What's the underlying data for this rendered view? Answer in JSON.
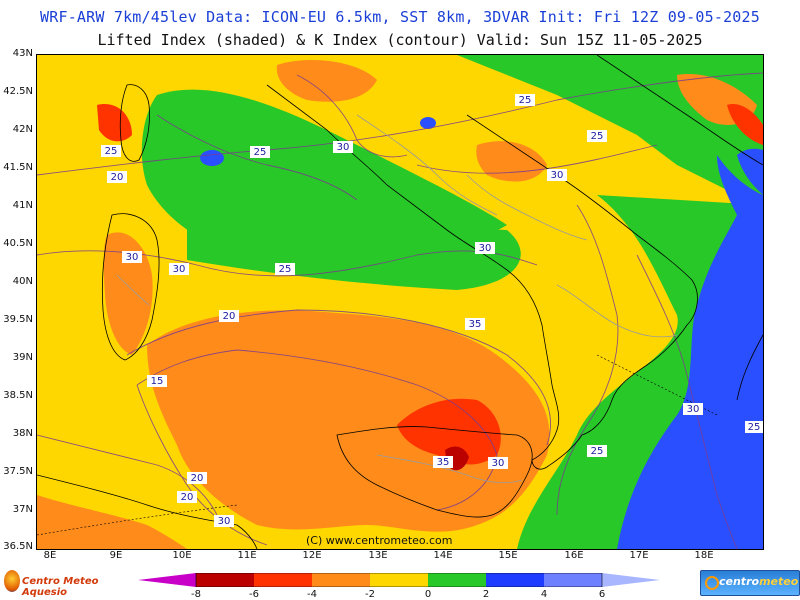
{
  "header": {
    "title_line1": "WRF-ARW 7km/45lev  Data: ICON-EU 6.5km, SST 8km, 3DVAR  Init: Fri 12Z 09-05-2025",
    "title_line2": "Lifted Index (shaded) & K Index (contour)  Valid: Sun 15Z 11-05-2025"
  },
  "map": {
    "lat_labels": [
      "43N",
      "42.5N",
      "42N",
      "41.5N",
      "41N",
      "40.5N",
      "40N",
      "39.5N",
      "39N",
      "38.5N",
      "38N",
      "37.5N",
      "37N",
      "36.5N"
    ],
    "lon_labels": [
      "8E",
      "9E",
      "10E",
      "11E",
      "12E",
      "13E",
      "14E",
      "15E",
      "16E",
      "17E",
      "18E"
    ],
    "copyright": "(C) www.centrometeo.com",
    "contour_labels": [
      "25",
      "25",
      "25",
      "25",
      "20",
      "30",
      "30",
      "30",
      "25",
      "30",
      "30",
      "20",
      "35",
      "15",
      "35",
      "30",
      "20",
      "20",
      "30",
      "30",
      "25",
      "25",
      "30"
    ]
  },
  "colorbar": {
    "colors": [
      "#c800c8",
      "#bb0000",
      "#ff3300",
      "#ff8c1a",
      "#ffd700",
      "#28c828",
      "#1e3cff",
      "#2a4fff",
      "#6f80ff",
      "#a8b6ff"
    ],
    "ticks": [
      "-8",
      "-6",
      "-4",
      "-2",
      "0",
      "2",
      "4",
      "6"
    ]
  },
  "logos": {
    "left_text": "Centro Meteo Aquesio",
    "right_text_a": "centro",
    "right_text_b": "meteo"
  }
}
